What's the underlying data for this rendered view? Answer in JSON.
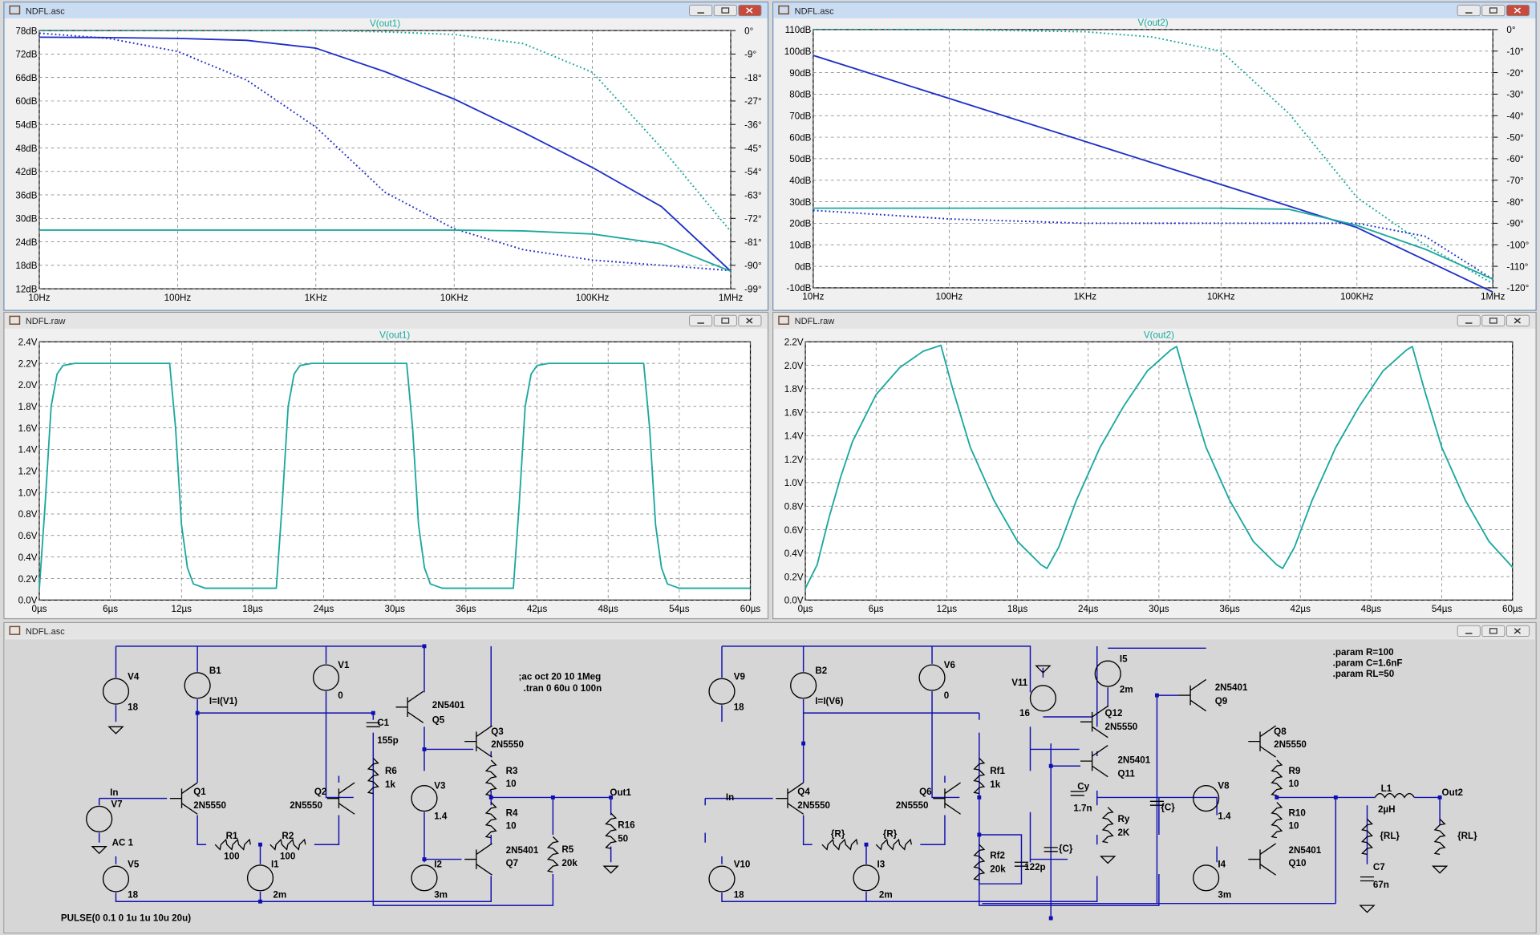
{
  "windows": [
    {
      "title": "NDFL.asc"
    },
    {
      "title": "NDFL.asc"
    },
    {
      "title": "NDFL.raw"
    },
    {
      "title": "NDFL.raw"
    },
    {
      "title": "NDFL.asc"
    }
  ],
  "plots": [
    {
      "type": "line",
      "trace": "V(out1)",
      "xscale": "log",
      "grid": true,
      "xlim": [
        10,
        1000000
      ],
      "xticks": [
        {
          "value": 10,
          "label": "10Hz"
        },
        {
          "value": 100,
          "label": "100Hz"
        },
        {
          "value": 1000,
          "label": "1KHz"
        },
        {
          "value": 10000,
          "label": "10KHz"
        },
        {
          "value": 100000,
          "label": "100KHz"
        },
        {
          "value": 1000000,
          "label": "1MHz"
        }
      ],
      "ylim": [
        12,
        78
      ],
      "yticks": [
        {
          "value": 12,
          "label": "12dB"
        },
        {
          "value": 18,
          "label": "18dB"
        },
        {
          "value": 24,
          "label": "24dB"
        },
        {
          "value": 30,
          "label": "30dB"
        },
        {
          "value": 36,
          "label": "36dB"
        },
        {
          "value": 42,
          "label": "42dB"
        },
        {
          "value": 48,
          "label": "48dB"
        },
        {
          "value": 54,
          "label": "54dB"
        },
        {
          "value": 60,
          "label": "60dB"
        },
        {
          "value": 66,
          "label": "66dB"
        },
        {
          "value": 72,
          "label": "72dB"
        },
        {
          "value": 78,
          "label": "78dB"
        }
      ],
      "y2lim": [
        -99,
        0
      ],
      "y2ticks": [
        {
          "value": 0,
          "label": "0°"
        },
        {
          "value": -9,
          "label": "-9°"
        },
        {
          "value": -18,
          "label": "-18°"
        },
        {
          "value": -27,
          "label": "-27°"
        },
        {
          "value": -36,
          "label": "-36°"
        },
        {
          "value": -45,
          "label": "-45°"
        },
        {
          "value": -54,
          "label": "-54°"
        },
        {
          "value": -63,
          "label": "-63°"
        },
        {
          "value": -72,
          "label": "-72°"
        },
        {
          "value": -81,
          "label": "-81°"
        },
        {
          "value": -90,
          "label": "-90°"
        },
        {
          "value": -99,
          "label": "-99°"
        }
      ],
      "x": [
        10,
        31.6,
        100,
        316,
        1000,
        3160,
        10000,
        31600,
        100000,
        316000,
        1000000
      ],
      "series": [
        {
          "color": "#1f2fc8",
          "style": "solid",
          "values": [
            76.3,
            76.2,
            76,
            75.5,
            73.5,
            67.5,
            60.5,
            52,
            43,
            33,
            16.5
          ]
        },
        {
          "color": "#1f2fc8",
          "style": "dotted",
          "axis": "y2",
          "values": [
            -1,
            -3,
            -8,
            -19,
            -37,
            -62,
            -76,
            -84,
            -88,
            -90,
            -92
          ]
        },
        {
          "color": "#1aa89e",
          "style": "solid",
          "values": [
            27,
            27,
            27,
            27,
            27,
            27,
            27,
            26.8,
            26,
            23.5,
            16.5
          ]
        },
        {
          "color": "#1aa89e",
          "style": "dotted",
          "axis": "y2",
          "values": [
            0,
            0,
            0,
            0,
            0,
            -0.5,
            -1.5,
            -5,
            -16,
            -45,
            -77
          ]
        }
      ]
    },
    {
      "type": "line",
      "trace": "V(out2)",
      "xscale": "log",
      "grid": true,
      "xlim": [
        10,
        1000000
      ],
      "xticks": [
        {
          "value": 10,
          "label": "10Hz"
        },
        {
          "value": 100,
          "label": "100Hz"
        },
        {
          "value": 1000,
          "label": "1KHz"
        },
        {
          "value": 10000,
          "label": "10KHz"
        },
        {
          "value": 100000,
          "label": "100KHz"
        },
        {
          "value": 1000000,
          "label": "1MHz"
        }
      ],
      "ylim": [
        -10,
        110
      ],
      "yticks": [
        {
          "value": -10,
          "label": "-10dB"
        },
        {
          "value": 0,
          "label": "0dB"
        },
        {
          "value": 10,
          "label": "10dB"
        },
        {
          "value": 20,
          "label": "20dB"
        },
        {
          "value": 30,
          "label": "30dB"
        },
        {
          "value": 40,
          "label": "40dB"
        },
        {
          "value": 50,
          "label": "50dB"
        },
        {
          "value": 60,
          "label": "60dB"
        },
        {
          "value": 70,
          "label": "70dB"
        },
        {
          "value": 80,
          "label": "80dB"
        },
        {
          "value": 90,
          "label": "90dB"
        },
        {
          "value": 100,
          "label": "100dB"
        },
        {
          "value": 110,
          "label": "110dB"
        }
      ],
      "y2lim": [
        -120,
        0
      ],
      "y2ticks": [
        {
          "value": 0,
          "label": "0°"
        },
        {
          "value": -10,
          "label": "-10°"
        },
        {
          "value": -20,
          "label": "-20°"
        },
        {
          "value": -30,
          "label": "-30°"
        },
        {
          "value": -40,
          "label": "-40°"
        },
        {
          "value": -50,
          "label": "-50°"
        },
        {
          "value": -60,
          "label": "-60°"
        },
        {
          "value": -70,
          "label": "-70°"
        },
        {
          "value": -80,
          "label": "-80°"
        },
        {
          "value": -90,
          "label": "-90°"
        },
        {
          "value": -100,
          "label": "-100°"
        },
        {
          "value": -110,
          "label": "-110°"
        },
        {
          "value": -120,
          "label": "-120°"
        }
      ],
      "x": [
        10,
        31.6,
        100,
        316,
        1000,
        3160,
        10000,
        31600,
        100000,
        316000,
        1000000
      ],
      "series": [
        {
          "color": "#1f2fc8",
          "style": "solid",
          "values": [
            98,
            88,
            78,
            68,
            58,
            48,
            38,
            28,
            18,
            3,
            -12
          ]
        },
        {
          "color": "#1f2fc8",
          "style": "dotted",
          "axis": "y2",
          "values": [
            -84,
            -86,
            -88,
            -89,
            -90,
            -90,
            -90,
            -90,
            -90,
            -96,
            -116
          ]
        },
        {
          "color": "#1aa89e",
          "style": "solid",
          "values": [
            27,
            27,
            27,
            27,
            27,
            27,
            27,
            26.5,
            19,
            8,
            -6
          ]
        },
        {
          "color": "#1aa89e",
          "style": "dotted",
          "axis": "y2",
          "values": [
            0,
            0,
            0,
            -0.5,
            -1,
            -3.5,
            -10,
            -39,
            -78,
            -100,
            -118
          ]
        }
      ]
    },
    {
      "type": "line",
      "trace": "V(out1)",
      "xscale": "linear",
      "grid": true,
      "xlim": [
        0,
        60
      ],
      "xticks": [
        {
          "value": 0,
          "label": "0µs"
        },
        {
          "value": 6,
          "label": "6µs"
        },
        {
          "value": 12,
          "label": "12µs"
        },
        {
          "value": 18,
          "label": "18µs"
        },
        {
          "value": 24,
          "label": "24µs"
        },
        {
          "value": 30,
          "label": "30µs"
        },
        {
          "value": 36,
          "label": "36µs"
        },
        {
          "value": 42,
          "label": "42µs"
        },
        {
          "value": 48,
          "label": "48µs"
        },
        {
          "value": 54,
          "label": "54µs"
        },
        {
          "value": 60,
          "label": "60µs"
        }
      ],
      "ylim": [
        0,
        2.4
      ],
      "yticks": [
        {
          "value": 0,
          "label": "0.0V"
        },
        {
          "value": 0.2,
          "label": "0.2V"
        },
        {
          "value": 0.4,
          "label": "0.4V"
        },
        {
          "value": 0.6,
          "label": "0.6V"
        },
        {
          "value": 0.8,
          "label": "0.8V"
        },
        {
          "value": 1.0,
          "label": "1.0V"
        },
        {
          "value": 1.2,
          "label": "1.2V"
        },
        {
          "value": 1.4,
          "label": "1.4V"
        },
        {
          "value": 1.6,
          "label": "1.6V"
        },
        {
          "value": 1.8,
          "label": "1.8V"
        },
        {
          "value": 2.0,
          "label": "2.0V"
        },
        {
          "value": 2.2,
          "label": "2.2V"
        },
        {
          "value": 2.4,
          "label": "2.4V"
        }
      ],
      "x": [
        0,
        0.5,
        1,
        1.5,
        2,
        3,
        10,
        11,
        11.5,
        12,
        12.5,
        13,
        14,
        20,
        20.5,
        21,
        21.5,
        22,
        23,
        30,
        31,
        31.5,
        32,
        32.5,
        33,
        34,
        40,
        40.5,
        41,
        41.5,
        42,
        43,
        50,
        51,
        51.5,
        52,
        52.5,
        53,
        54,
        60
      ],
      "series": [
        {
          "color": "#1aa89e",
          "style": "solid",
          "values": [
            0.1,
            0.9,
            1.8,
            2.1,
            2.18,
            2.2,
            2.2,
            2.2,
            1.6,
            0.7,
            0.3,
            0.15,
            0.11,
            0.11,
            0.9,
            1.8,
            2.1,
            2.18,
            2.2,
            2.2,
            2.2,
            1.6,
            0.7,
            0.3,
            0.15,
            0.11,
            0.11,
            0.9,
            1.8,
            2.1,
            2.18,
            2.2,
            2.2,
            2.2,
            1.6,
            0.7,
            0.3,
            0.15,
            0.11,
            0.11
          ]
        }
      ]
    },
    {
      "type": "line",
      "trace": "V(out2)",
      "xscale": "linear",
      "grid": true,
      "xlim": [
        0,
        60
      ],
      "xticks": [
        {
          "value": 0,
          "label": "0µs"
        },
        {
          "value": 6,
          "label": "6µs"
        },
        {
          "value": 12,
          "label": "12µs"
        },
        {
          "value": 18,
          "label": "18µs"
        },
        {
          "value": 24,
          "label": "24µs"
        },
        {
          "value": 30,
          "label": "30µs"
        },
        {
          "value": 36,
          "label": "36µs"
        },
        {
          "value": 42,
          "label": "42µs"
        },
        {
          "value": 48,
          "label": "48µs"
        },
        {
          "value": 54,
          "label": "54µs"
        },
        {
          "value": 60,
          "label": "60µs"
        }
      ],
      "ylim": [
        0,
        2.2
      ],
      "yticks": [
        {
          "value": 0,
          "label": "0.0V"
        },
        {
          "value": 0.2,
          "label": "0.2V"
        },
        {
          "value": 0.4,
          "label": "0.4V"
        },
        {
          "value": 0.6,
          "label": "0.6V"
        },
        {
          "value": 0.8,
          "label": "0.8V"
        },
        {
          "value": 1.0,
          "label": "1.0V"
        },
        {
          "value": 1.2,
          "label": "1.2V"
        },
        {
          "value": 1.4,
          "label": "1.4V"
        },
        {
          "value": 1.6,
          "label": "1.6V"
        },
        {
          "value": 1.8,
          "label": "1.8V"
        },
        {
          "value": 2.0,
          "label": "2.0V"
        },
        {
          "value": 2.2,
          "label": "2.2V"
        }
      ],
      "x": [
        0,
        1,
        2,
        3,
        4,
        6,
        8,
        10,
        11.5,
        12.5,
        14,
        16,
        18,
        20,
        20.5,
        21.5,
        23,
        25,
        27,
        29,
        31,
        31.5,
        32.5,
        34,
        36,
        38,
        40,
        40.5,
        41.5,
        43,
        45,
        47,
        49,
        51,
        51.5,
        52.5,
        54,
        56,
        58,
        60
      ],
      "series": [
        {
          "color": "#1aa89e",
          "style": "solid",
          "values": [
            0.1,
            0.3,
            0.7,
            1.05,
            1.35,
            1.75,
            1.98,
            2.12,
            2.17,
            1.8,
            1.3,
            0.85,
            0.5,
            0.3,
            0.27,
            0.45,
            0.85,
            1.3,
            1.65,
            1.95,
            2.13,
            2.16,
            1.8,
            1.3,
            0.85,
            0.5,
            0.3,
            0.27,
            0.45,
            0.85,
            1.3,
            1.65,
            1.95,
            2.13,
            2.16,
            1.8,
            1.3,
            0.85,
            0.5,
            0.28
          ]
        }
      ]
    }
  ],
  "schematic": {
    "labels": [
      "V4",
      "18",
      "B1",
      "I=I(V1)",
      "V1",
      "0",
      ";ac oct 20 10 1Meg",
      ".tran 0 60u 0 100n",
      "2N5401",
      "Q5",
      "C1",
      "155p",
      "Q3",
      "2N5550",
      "R6",
      "1k",
      "V3",
      "1.4",
      "R3",
      "10",
      "R4",
      "10",
      "Out1",
      "R16",
      "50",
      "In",
      "V7",
      "Q1",
      "2N5550",
      "Q2",
      "2N5550",
      "AC 1",
      "R1",
      "100",
      "R2",
      "100",
      "2N5401",
      "Q7",
      "R5",
      "20k",
      "I2",
      "3m",
      "V5",
      "18",
      "I1",
      "2m",
      "PULSE(0 0.1 0 1u 1u 10u 20u)",
      "V9",
      "18",
      "B2",
      "I=I(V6)",
      "V6",
      "0",
      "I5",
      "2m",
      "V11",
      "16",
      "2N5401",
      "Q9",
      "Q12",
      "2N5550",
      ".param R=100",
      ".param C=1.6nF",
      ".param RL=50",
      "Q8",
      "2N5550",
      "2N5401",
      "Q11",
      "Rf1",
      "1k",
      "Cy",
      "1.7n",
      "{C}",
      "V8",
      "1.4",
      "R9",
      "10",
      "R10",
      "10",
      "L1",
      "2µH",
      "Out2",
      "{RL}",
      "{RL}",
      "Ry",
      "2K",
      "In",
      "Q4",
      "2N5550",
      "Q6",
      "2N5550",
      "{R}",
      "{R}",
      "{C}",
      "Rf2",
      "20k",
      "122p",
      "2N5401",
      "Q10",
      "I3",
      "2m",
      "V10",
      "18",
      "I4",
      "3m",
      "C7",
      "67n"
    ]
  }
}
